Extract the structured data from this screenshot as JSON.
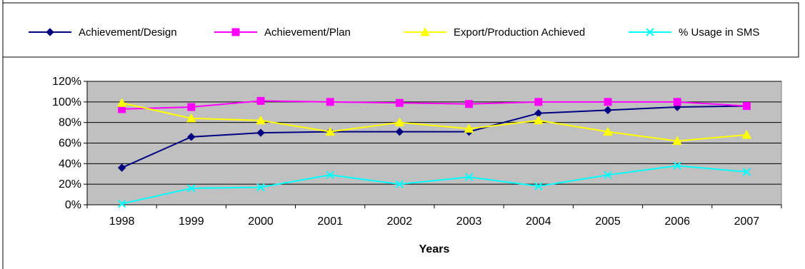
{
  "chart_data": {
    "type": "line",
    "title": "",
    "xlabel": "Years",
    "ylabel": "",
    "categories": [
      "1998",
      "1999",
      "2000",
      "2001",
      "2002",
      "2003",
      "2004",
      "2005",
      "2006",
      "2007"
    ],
    "y_ticks": [
      "0%",
      "20%",
      "40%",
      "60%",
      "80%",
      "100%",
      "120%"
    ],
    "ylim": [
      0,
      120
    ],
    "grid": "horizontal",
    "plot_background": "#c0c0c0",
    "legend_position": "top",
    "series": [
      {
        "name": "Achievement/Design",
        "color": "#000080",
        "marker": "diamond",
        "values": [
          36,
          66,
          70,
          71,
          71,
          71,
          89,
          92,
          95,
          96
        ]
      },
      {
        "name": "Achievement/Plan",
        "color": "#ff00ff",
        "marker": "square",
        "values": [
          93,
          95,
          101,
          100,
          99,
          98,
          100,
          100,
          100,
          96
        ]
      },
      {
        "name": "Export/Production Achieved",
        "color": "#ffff00",
        "marker": "triangle",
        "values": [
          99,
          84,
          82,
          71,
          80,
          74,
          82,
          71,
          62,
          68
        ]
      },
      {
        "name": "% Usage in SMS",
        "color": "#00ffff",
        "marker": "x",
        "values": [
          1,
          16,
          17,
          29,
          20,
          27,
          18,
          29,
          38,
          32
        ]
      }
    ]
  }
}
